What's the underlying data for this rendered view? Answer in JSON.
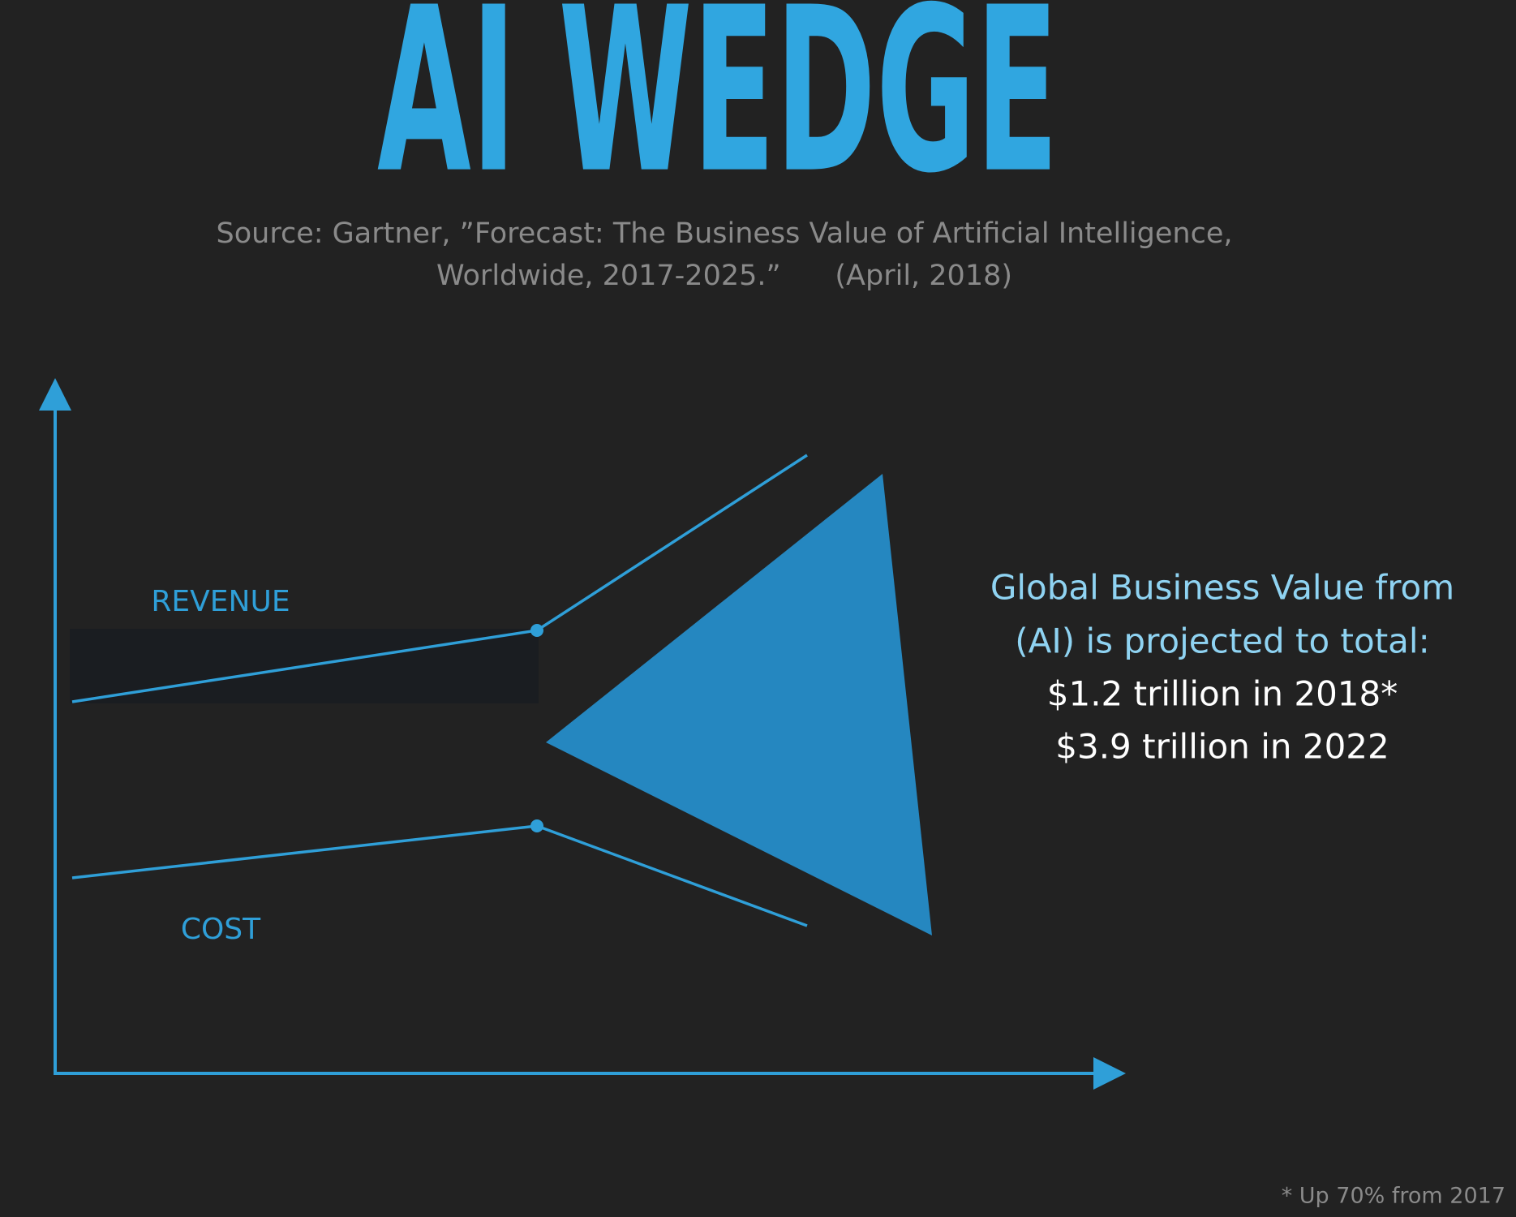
{
  "title": "AI WEDGE",
  "source": {
    "line1": "Source: Gartner, ”Forecast: The Business Value of Artificial Intelligence,",
    "line2": "Worldwide, 2017-2025.”      (April, 2018)"
  },
  "diagram": {
    "revenue_label": "REVENUE",
    "cost_label": "COST"
  },
  "callout": {
    "lines": [
      "Global Business Value from",
      "(AI) is projected to total:",
      "$1.2 trillion in 2018*",
      "$3.9 trillion in 2022"
    ]
  },
  "footnote": "* Up 70% from 2017"
}
